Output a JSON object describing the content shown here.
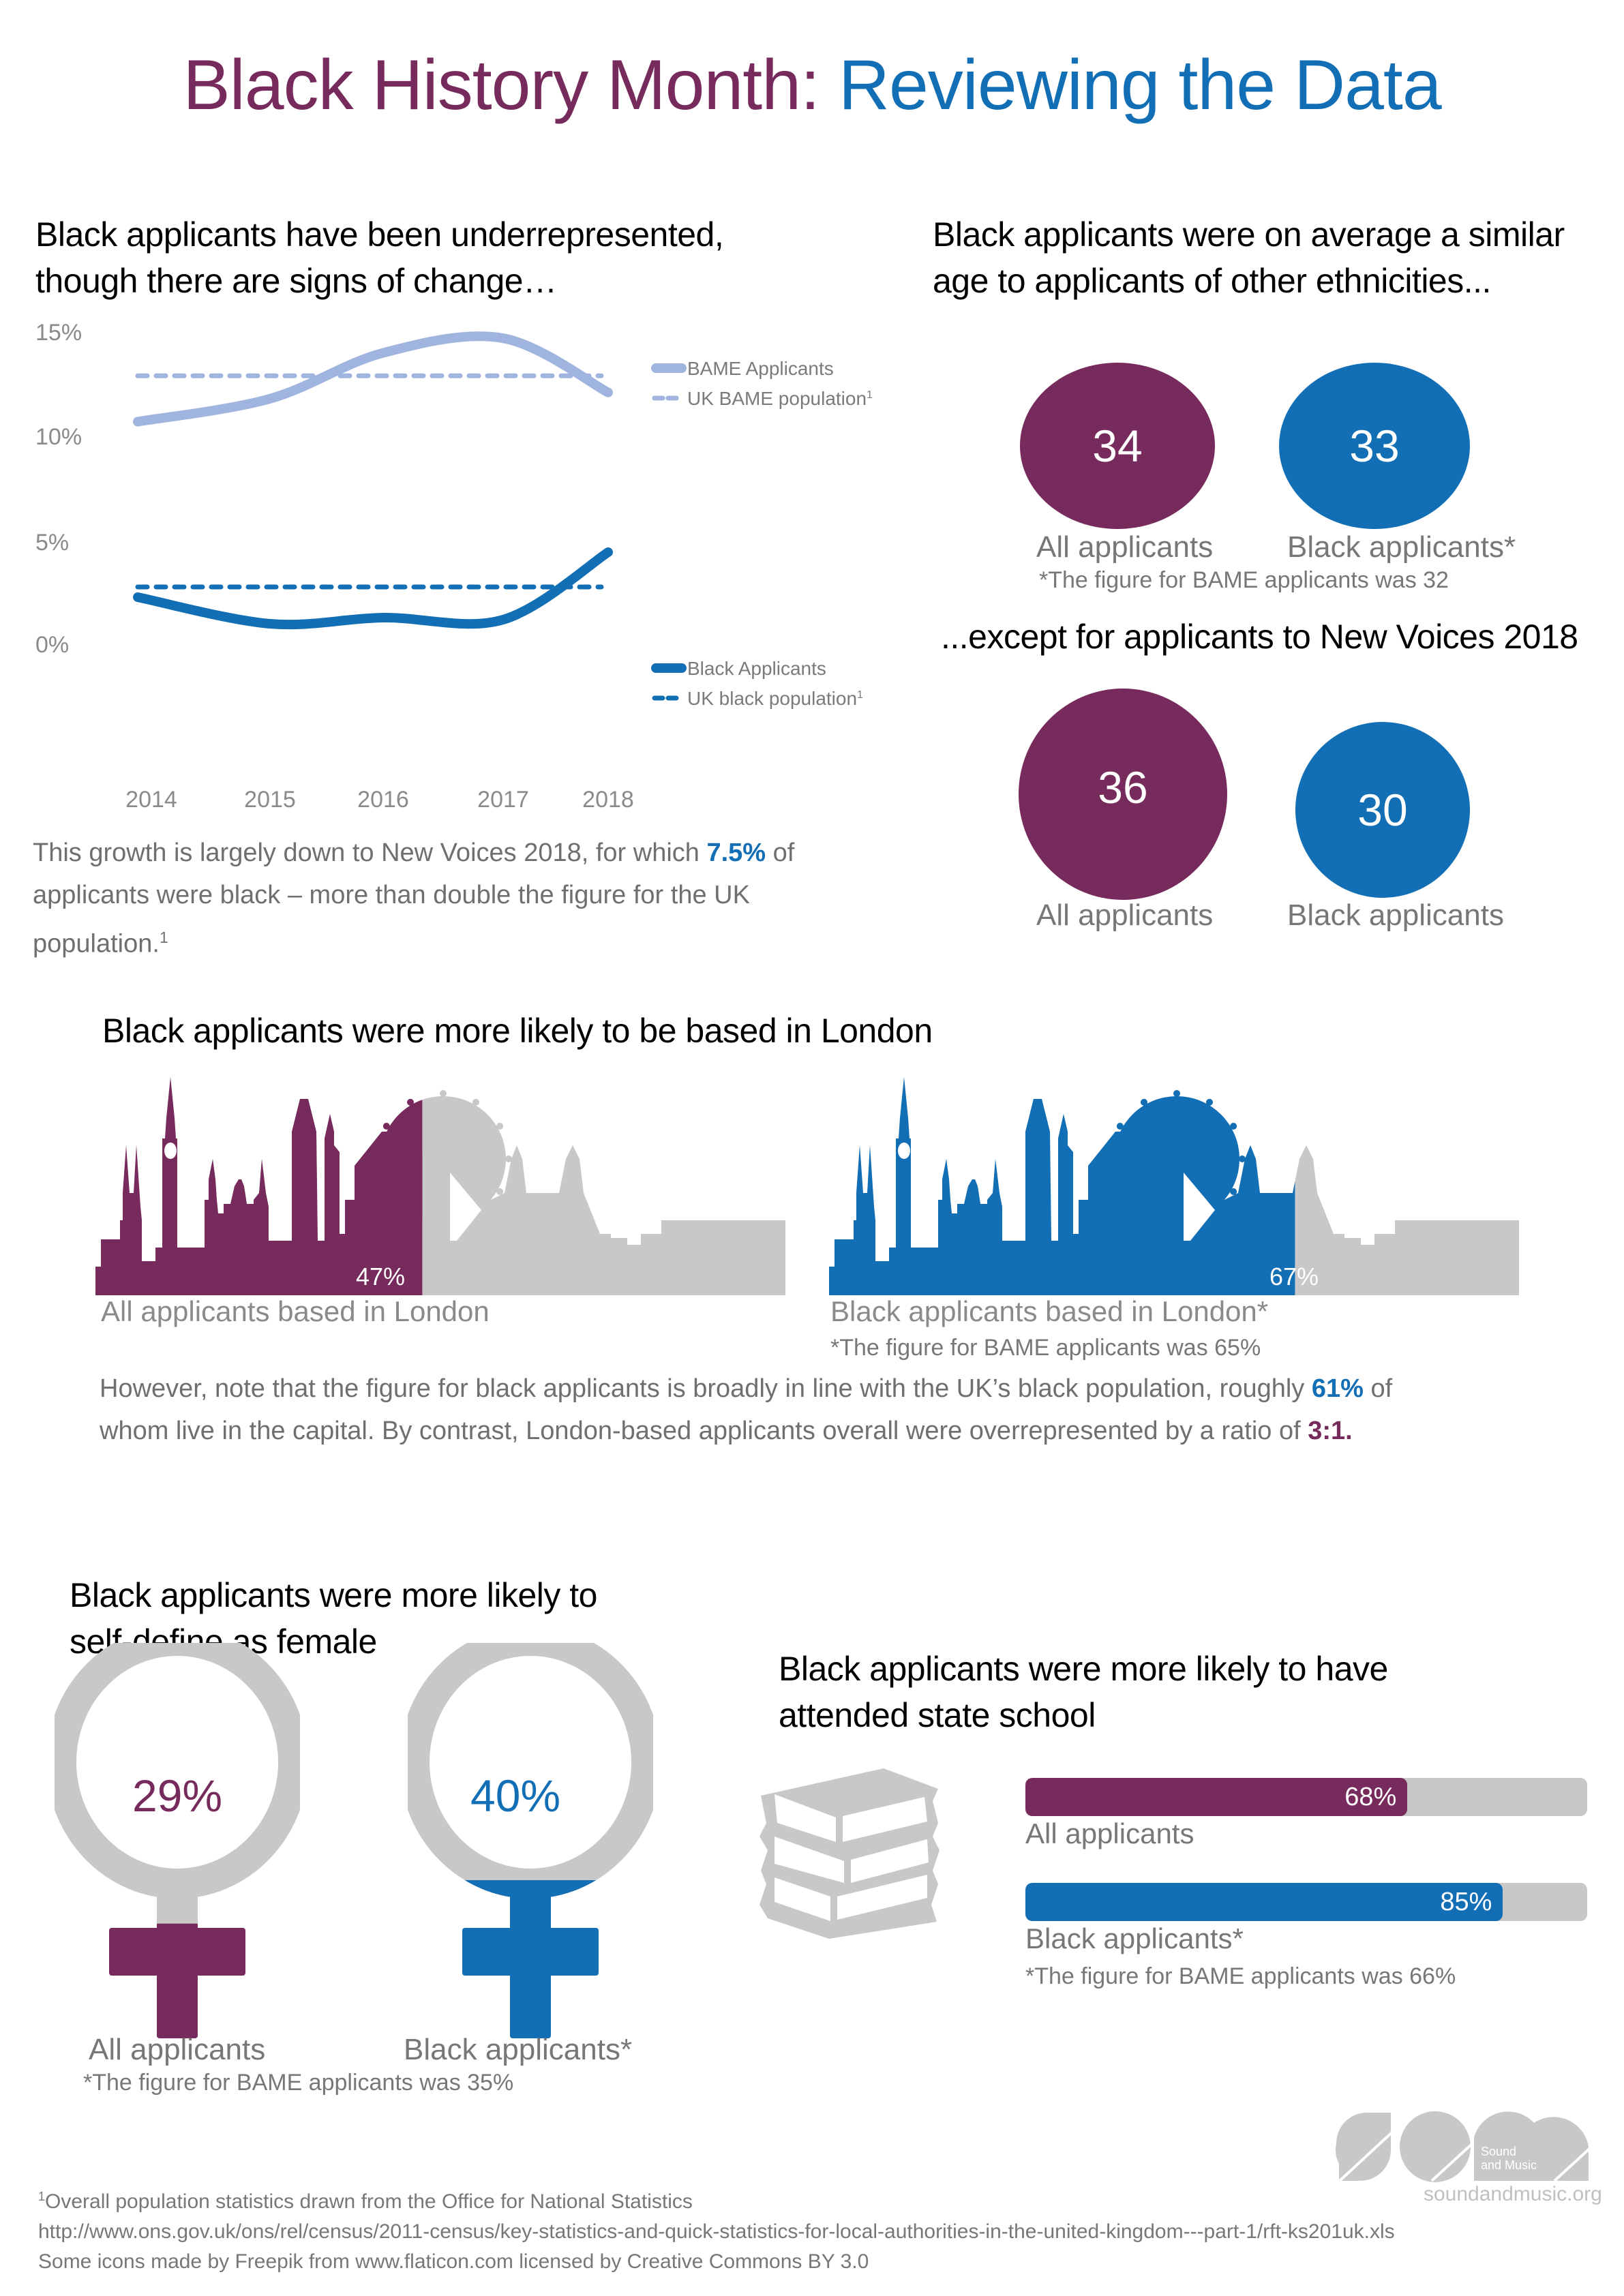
{
  "header": {
    "title_part1": "Black History Month:",
    "title_part2": "Reviewing the Data"
  },
  "colors": {
    "purple": "#772a5c",
    "blue": "#136fb5",
    "light_blue": "#9fb4de",
    "grey": "#c8c8c8",
    "text_grey": "#777777"
  },
  "section_trend": {
    "heading_line1": "Black applicants have been underrepresented,",
    "heading_line2": "though there are signs of change…",
    "body_part1": "This growth is largely down to New Voices 2018, for which",
    "body_highlight": "7.5%",
    "body_part2": "of applicants were black – more than double the figure for the UK population.",
    "body_sup": "1"
  },
  "chart_data": [
    {
      "type": "line",
      "title": "BAME applicants vs UK BAME population",
      "x": [
        "2014",
        "2015",
        "2016",
        "2017",
        "2018"
      ],
      "series": [
        {
          "name": "BAME Applicants",
          "values": [
            10.7,
            11.8,
            14.0,
            14.7,
            12.1
          ],
          "style": "solid",
          "color": "#9fb4de"
        },
        {
          "name": "UK BAME population",
          "sup": "1",
          "values": [
            12.9,
            12.9,
            12.9,
            12.9,
            12.9
          ],
          "style": "dashed",
          "color": "#9fb4de"
        }
      ],
      "yticks": [
        "15%",
        "10%"
      ],
      "ylim": [
        10,
        15
      ],
      "legend": "right",
      "grid": false
    },
    {
      "type": "line",
      "title": "Black applicants vs UK black population",
      "x": [
        "2014",
        "2015",
        "2016",
        "2017",
        "2018"
      ],
      "series": [
        {
          "name": "Black Applicants",
          "values": [
            2.3,
            1.0,
            1.3,
            1.2,
            4.5
          ],
          "style": "solid",
          "color": "#136fb5"
        },
        {
          "name": "UK black population",
          "sup": "1",
          "values": [
            2.8,
            2.8,
            2.8,
            2.8,
            2.8
          ],
          "style": "dashed",
          "color": "#136fb5"
        }
      ],
      "yticks": [
        "5%",
        "0%"
      ],
      "xticks": [
        "2014",
        "2015",
        "2016",
        "2017",
        "2018"
      ],
      "ylim": [
        0,
        5
      ],
      "legend": "right",
      "grid": false
    }
  ],
  "section_age": {
    "heading_line1": "Black applicants were on average a similar",
    "heading_line2": "age to applicants of other ethnicities...",
    "all_value": "34",
    "all_label": "All applicants",
    "black_value": "33",
    "black_label": "Black applicants*",
    "note": "*The figure for BAME applicants was 32"
  },
  "section_nv": {
    "heading": "...except for applicants to New Voices 2018",
    "all_value": "36",
    "all_label": "All applicants",
    "black_value": "30",
    "black_label": "Black applicants"
  },
  "section_london": {
    "heading": "Black applicants were more likely to be based in London",
    "all_pct_text": "47%",
    "all_pct": 47,
    "all_label": "All applicants based in London",
    "black_pct_text": "67%",
    "black_pct": 67,
    "black_label": "Black applicants based in London*",
    "note": "*The figure for BAME applicants was 65%",
    "body_part1": "However, note that the figure for black applicants is broadly in line with the UK’s black population, roughly",
    "body_highlight1": "61%",
    "body_part2": "of whom live in the capital. By contrast, London-based applicants overall were overrepresented by a ratio of",
    "body_highlight2": "3:1",
    "body_end": "."
  },
  "section_female": {
    "heading_line1": "Black applicants were more likely to",
    "heading_line2": "self-define as female",
    "all_value": "29%",
    "all_pct": 29,
    "all_label": "All applicants",
    "black_value": "40%",
    "black_pct": 40,
    "black_label": "Black applicants*",
    "note": "*The figure for BAME applicants was 35%"
  },
  "section_school": {
    "heading_line1": "Black applicants were more likely to have",
    "heading_line2": "attended state school",
    "bars": [
      {
        "label": "All applicants",
        "value_text": "68%",
        "value": 68,
        "color": "#772a5c"
      },
      {
        "label": "Black applicants*",
        "value_text": "85%",
        "value": 85,
        "color": "#136fb5"
      }
    ],
    "note": "*The figure for BAME applicants was 66%"
  },
  "footer": {
    "sup": "1",
    "line1": "Overall population statistics drawn from the Office for National Statistics",
    "line2": "http://www.ons.gov.uk/ons/rel/census/2011-census/key-statistics-and-quick-statistics-for-local-authorities-in-the-united-kingdom---part-1/rft-ks201uk.xls",
    "line3": "Some icons made by Freepik from www.flaticon.com licensed by Creative Commons BY 3.0"
  },
  "logo": {
    "name_line1": "Sound",
    "name_line2": "and Music",
    "url": "soundandmusic.org"
  }
}
